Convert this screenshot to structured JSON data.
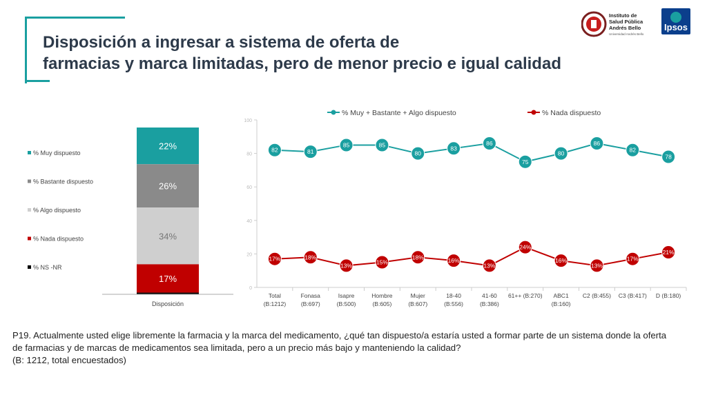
{
  "title": {
    "line1": "Disposición a ingresar a sistema de oferta de",
    "line2": "farmacias y marca limitadas, pero de menor precio e igual calidad"
  },
  "logos": {
    "isp": {
      "line1": "Instituto de",
      "line2": "Salud Pública",
      "line3": "Andrés Bello",
      "line4": "Universidad Andrés Bello"
    },
    "ipsos": "Ipsos"
  },
  "question": {
    "line1": "P19. Actualmente usted elige libremente la farmacia y la marca del medicamento, ¿qué tan dispuesto/a estaría usted a formar parte de un sistema donde la oferta",
    "line2": "de farmacias y de marcas de medicamentos sea limitada, pero a un precio más bajo y manteniendo la calidad?",
    "line3": "(B: 1212, total encuestados)"
  },
  "colors": {
    "teal": "#1a9fa0",
    "gray": "#8a8a8a",
    "lightgray": "#cfcfcf",
    "red": "#c00000",
    "black": "#000000",
    "title": "#2d3a4a"
  },
  "chart_data": [
    {
      "type": "bar",
      "stacked": true,
      "categories": [
        "Disposición"
      ],
      "series": [
        {
          "name": "% Muy dispuesto",
          "values": [
            22
          ],
          "label": "22%",
          "color": "#1a9fa0"
        },
        {
          "name": "% Bastante dispuesto",
          "values": [
            26
          ],
          "label": "26%",
          "color": "#8a8a8a"
        },
        {
          "name": "% Algo dispuesto",
          "values": [
            34
          ],
          "label": "34%",
          "color": "#cfcfcf"
        },
        {
          "name": "% Nada dispuesto",
          "values": [
            17
          ],
          "label": "17%",
          "color": "#c00000"
        },
        {
          "name": "% NS -NR",
          "values": [
            1
          ],
          "label": "",
          "color": "#000000"
        }
      ],
      "legend": "left"
    },
    {
      "type": "line",
      "categories": [
        [
          "Total",
          "(B:1212)"
        ],
        [
          "Fonasa",
          "(B:697)"
        ],
        [
          "Isapre",
          "(B:500)"
        ],
        [
          "Hombre",
          "(B:605)"
        ],
        [
          "Mujer",
          "(B:607)"
        ],
        [
          "18-40",
          "(B:556)"
        ],
        [
          "41-60",
          "(B:386)"
        ],
        [
          "61++ (B:270)",
          ""
        ],
        [
          "ABC1",
          "(B:160)"
        ],
        [
          "C2 (B:455)",
          ""
        ],
        [
          "C3 (B:417)",
          ""
        ],
        [
          "D (B:180)",
          ""
        ]
      ],
      "series": [
        {
          "name": "% Muy + Bastante + Algo dispuesto",
          "color": "#1a9fa0",
          "values": [
            82,
            81,
            85,
            85,
            80,
            83,
            86,
            75,
            80,
            86,
            82,
            78
          ],
          "labels": [
            "82",
            "81",
            "85",
            "85",
            "80",
            "83",
            "86",
            "75",
            "80",
            "86",
            "82",
            "78"
          ]
        },
        {
          "name": "% Nada dispuesto",
          "color": "#c00000",
          "values": [
            17,
            18,
            13,
            15,
            18,
            16,
            13,
            24,
            16,
            13,
            17,
            21
          ],
          "labels": [
            "17%",
            "18%",
            "13%",
            "15%",
            "18%",
            "16%",
            "13%",
            "24%",
            "16%",
            "13%",
            "17%",
            "21%"
          ]
        }
      ],
      "ylim": [
        0,
        100
      ],
      "yticks": [
        "0",
        "20",
        "40",
        "60",
        "80",
        "100"
      ],
      "grid": false,
      "legend": "top"
    }
  ]
}
